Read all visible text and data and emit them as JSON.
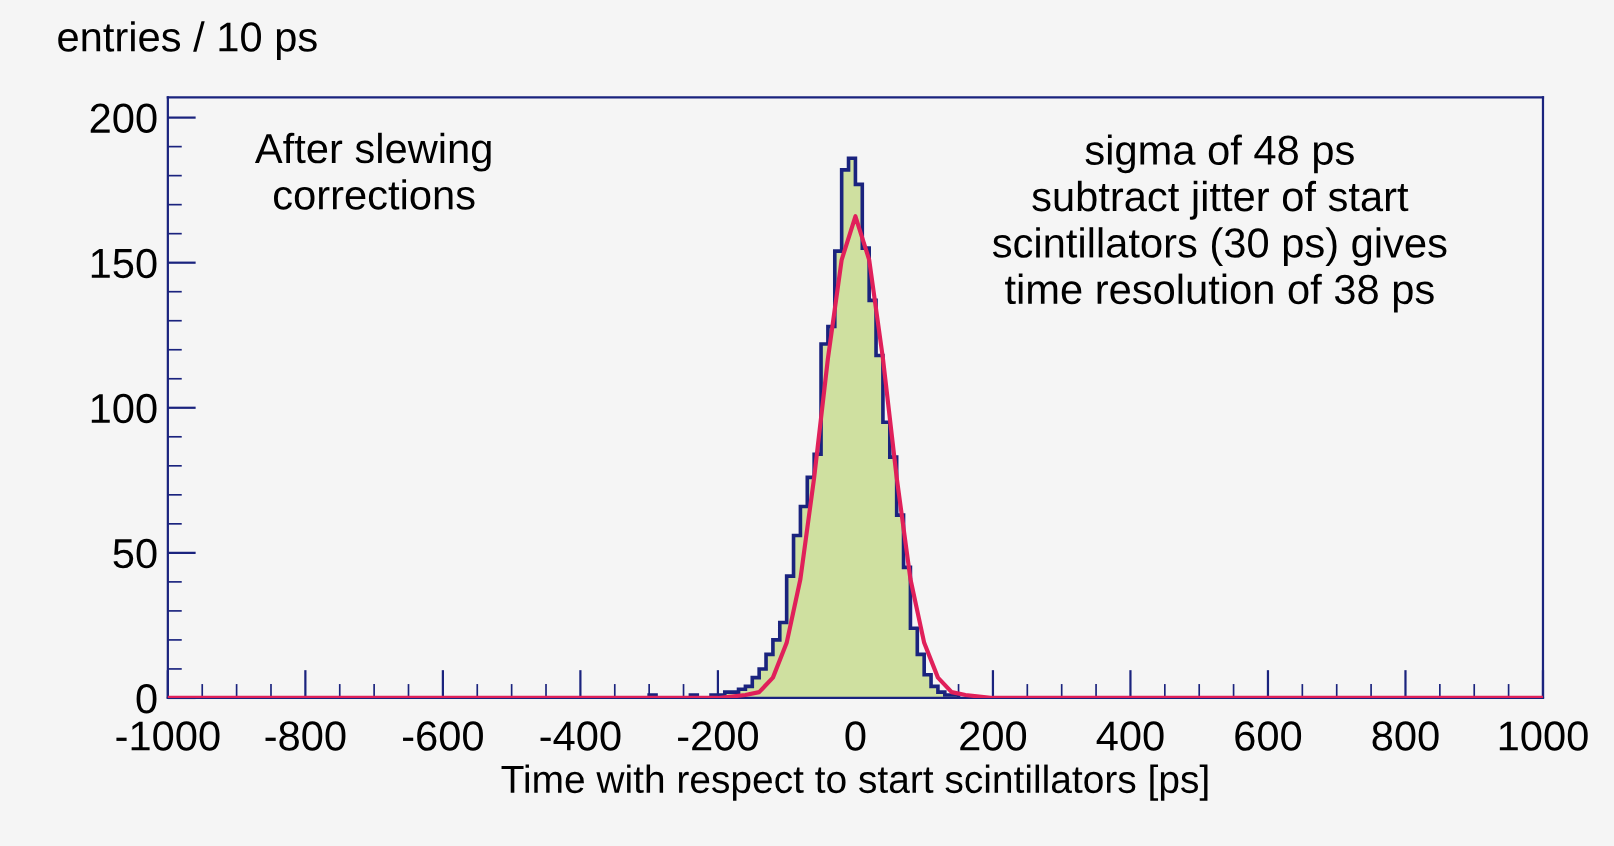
{
  "chart_data": {
    "type": "histogram",
    "ylabel": "entries / 10 ps",
    "xlabel": "Time with respect to start scintillators [ps]",
    "bins": [
      -300,
      -290,
      -280,
      -270,
      -260,
      -250,
      -240,
      -230,
      -220,
      -210,
      -200,
      -190,
      -180,
      -170,
      -160,
      -150,
      -140,
      -130,
      -120,
      -110,
      -100,
      -90,
      -80,
      -70,
      -60,
      -50,
      -40,
      -30,
      -20,
      -10,
      0,
      10,
      20,
      30,
      40,
      50,
      60,
      70,
      80,
      90,
      100,
      110,
      120,
      130,
      140,
      150
    ],
    "values": [
      1,
      0,
      0,
      0,
      0,
      0,
      1,
      0,
      0,
      1,
      1,
      2,
      2,
      3,
      4,
      7,
      10,
      15,
      20,
      26,
      42,
      56,
      66,
      76,
      84,
      122,
      128,
      154,
      182,
      186,
      177,
      155,
      137,
      118,
      95,
      83,
      63,
      45,
      24,
      15,
      8,
      4,
      2,
      1,
      1
    ],
    "color": "#cfe0a0",
    "series": [
      {
        "type": "line",
        "color": "#e0205a",
        "x": [
          -1000,
          -200,
          -160,
          -140,
          -120,
          -100,
          -80,
          -60,
          -40,
          -20,
          0,
          20,
          40,
          60,
          80,
          100,
          120,
          140,
          160,
          200,
          1000
        ],
        "values": [
          0,
          0,
          1,
          2,
          7,
          19,
          41,
          76,
          117,
          151,
          166,
          151,
          117,
          76,
          41,
          19,
          7,
          2,
          1,
          0,
          0
        ]
      }
    ],
    "xlim": [
      -1000,
      1000
    ],
    "xticks": [
      -1000,
      -800,
      -600,
      -400,
      -200,
      0,
      200,
      400,
      600,
      800,
      1000
    ],
    "ylim": [
      0,
      207
    ],
    "yticks": [
      0,
      50,
      100,
      150,
      200
    ],
    "grid": false,
    "legend": false,
    "annotations": [
      "After slewing\ncorrections",
      "sigma of 48 ps\nsubtract jitter of start\nscintillators (30 ps) gives\ntime resolution of 38 ps"
    ]
  }
}
